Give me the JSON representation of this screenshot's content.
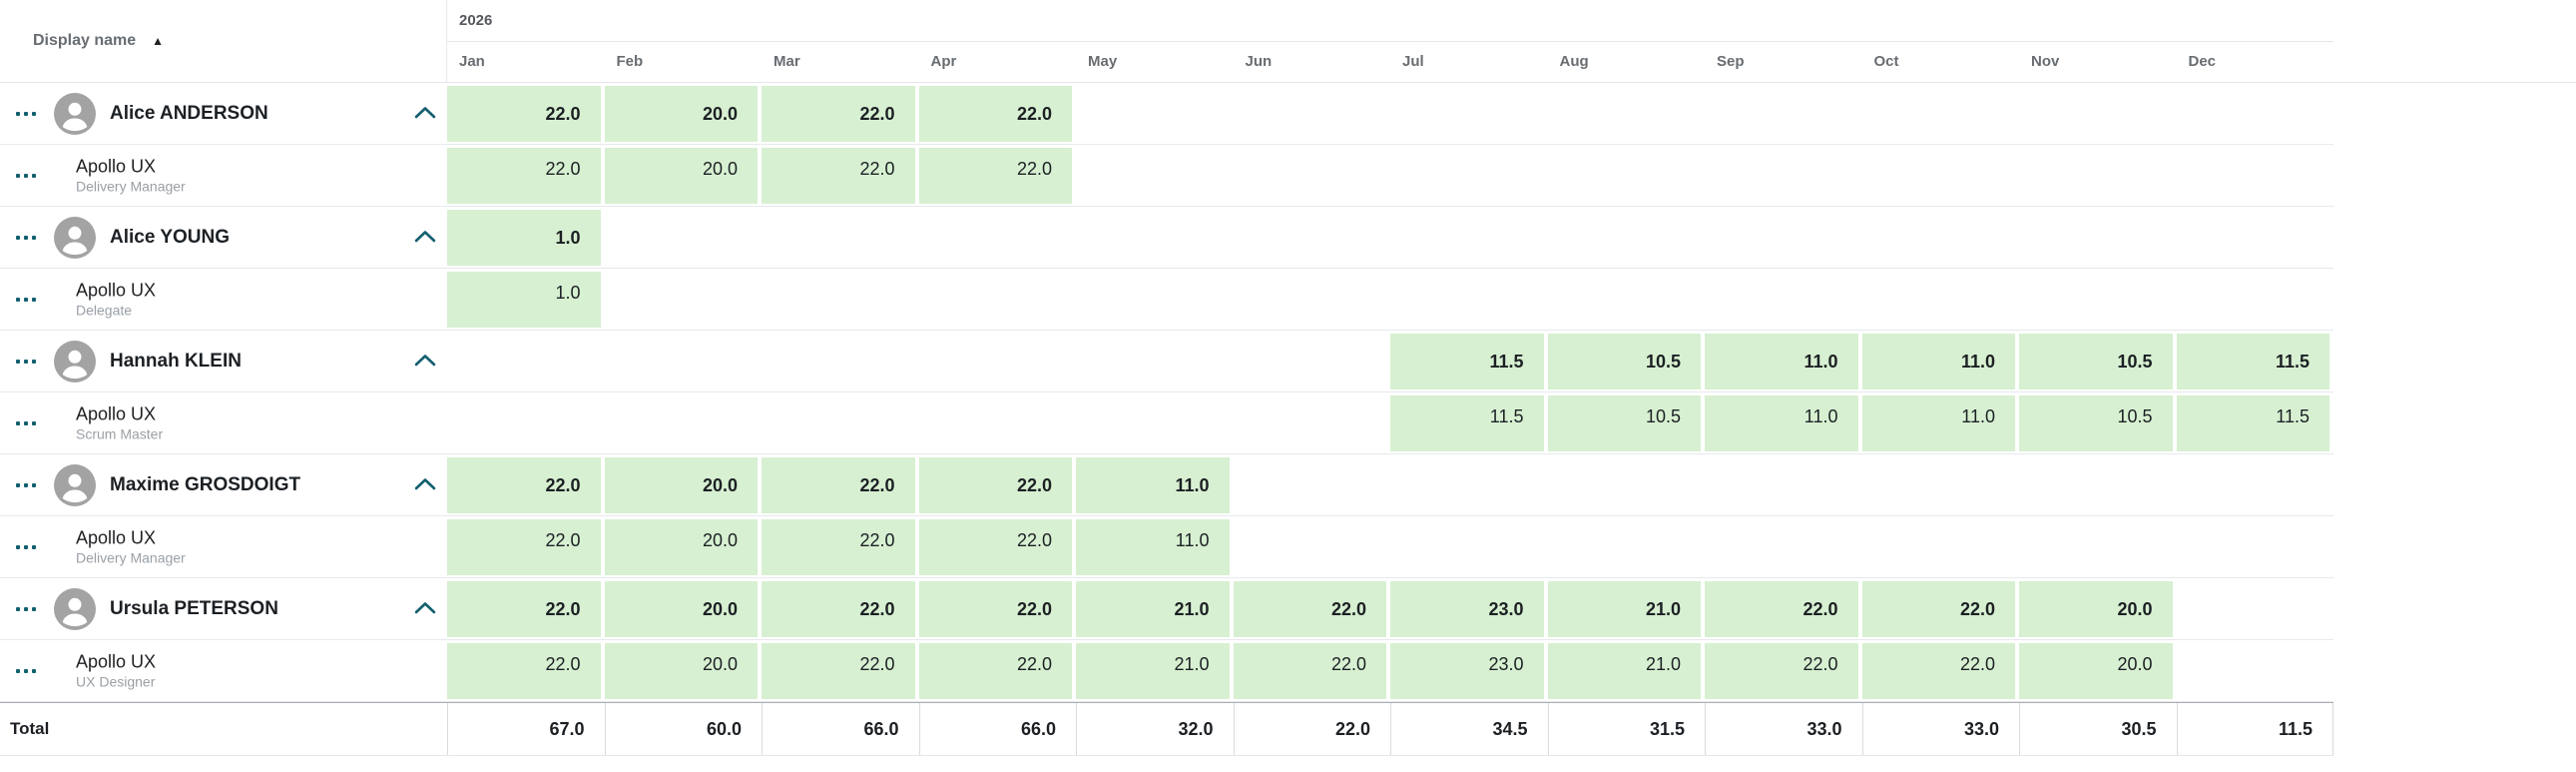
{
  "header": {
    "display_name_label": "Display name",
    "sort_icon": "▲",
    "year": "2026",
    "months": [
      "Jan",
      "Feb",
      "Mar",
      "Apr",
      "May",
      "Jun",
      "Jul",
      "Aug",
      "Sep",
      "Oct",
      "Nov",
      "Dec"
    ]
  },
  "people": [
    {
      "name": "Alice ANDERSON",
      "values": [
        "22.0",
        "20.0",
        "22.0",
        "22.0",
        "",
        "",
        "",
        "",
        "",
        "",
        "",
        ""
      ],
      "assignments": [
        {
          "project": "Apollo UX",
          "role": "Delivery Manager",
          "values": [
            "22.0",
            "20.0",
            "22.0",
            "22.0",
            "",
            "",
            "",
            "",
            "",
            "",
            "",
            ""
          ]
        }
      ]
    },
    {
      "name": "Alice YOUNG",
      "values": [
        "1.0",
        "",
        "",
        "",
        "",
        "",
        "",
        "",
        "",
        "",
        "",
        ""
      ],
      "assignments": [
        {
          "project": "Apollo UX",
          "role": "Delegate",
          "values": [
            "1.0",
            "",
            "",
            "",
            "",
            "",
            "",
            "",
            "",
            "",
            "",
            ""
          ]
        }
      ]
    },
    {
      "name": "Hannah KLEIN",
      "values": [
        "",
        "",
        "",
        "",
        "",
        "",
        "11.5",
        "10.5",
        "11.0",
        "11.0",
        "10.5",
        "11.5"
      ],
      "assignments": [
        {
          "project": "Apollo UX",
          "role": "Scrum Master",
          "values": [
            "",
            "",
            "",
            "",
            "",
            "",
            "11.5",
            "10.5",
            "11.0",
            "11.0",
            "10.5",
            "11.5"
          ]
        }
      ]
    },
    {
      "name": "Maxime GROSDOIGT",
      "values": [
        "22.0",
        "20.0",
        "22.0",
        "22.0",
        "11.0",
        "",
        "",
        "",
        "",
        "",
        "",
        ""
      ],
      "assignments": [
        {
          "project": "Apollo UX",
          "role": "Delivery Manager",
          "values": [
            "22.0",
            "20.0",
            "22.0",
            "22.0",
            "11.0",
            "",
            "",
            "",
            "",
            "",
            "",
            ""
          ]
        }
      ]
    },
    {
      "name": "Ursula PETERSON",
      "values": [
        "22.0",
        "20.0",
        "22.0",
        "22.0",
        "21.0",
        "22.0",
        "23.0",
        "21.0",
        "22.0",
        "22.0",
        "20.0",
        ""
      ],
      "assignments": [
        {
          "project": "Apollo UX",
          "role": "UX Designer",
          "values": [
            "22.0",
            "20.0",
            "22.0",
            "22.0",
            "21.0",
            "22.0",
            "23.0",
            "21.0",
            "22.0",
            "22.0",
            "20.0",
            ""
          ]
        }
      ]
    }
  ],
  "total": {
    "label": "Total",
    "values": [
      "67.0",
      "60.0",
      "66.0",
      "66.0",
      "32.0",
      "22.0",
      "34.5",
      "31.5",
      "33.0",
      "33.0",
      "30.5",
      "11.5"
    ]
  },
  "colors": {
    "cell_green": "#d7f0d1",
    "icon_teal": "#135f6e",
    "avatar_gray": "#a3a3a3",
    "row_divider": "#e7e9ec"
  }
}
